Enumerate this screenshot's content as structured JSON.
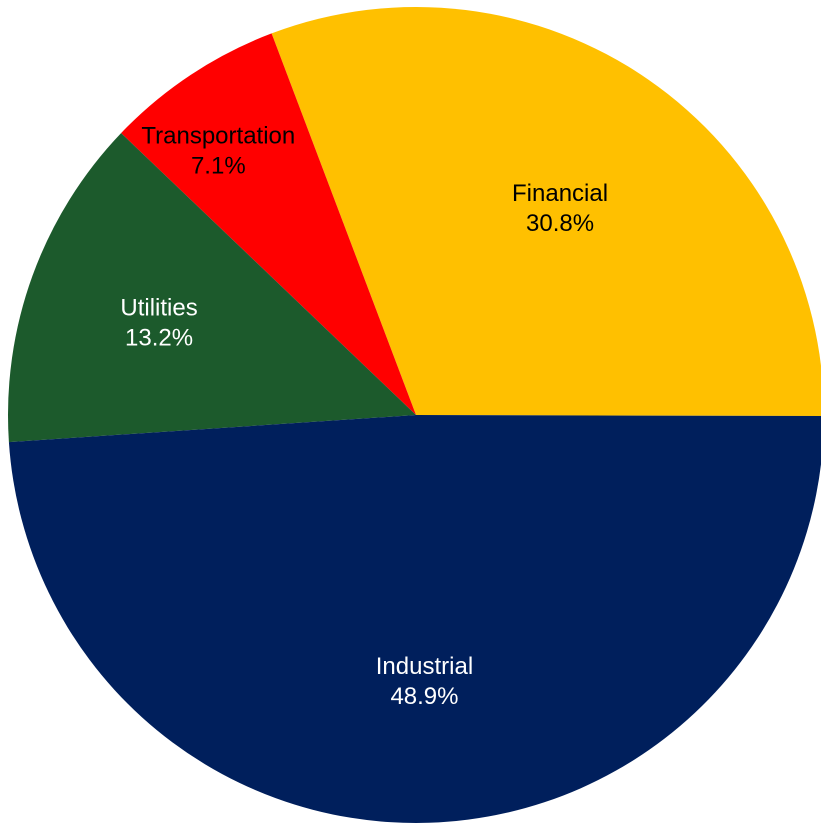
{
  "chart_data": {
    "type": "pie",
    "title": "",
    "slices": [
      {
        "label": "Financial",
        "value": 30.8,
        "display": "30.8%",
        "color": "#FFC000",
        "text_color": "#000000"
      },
      {
        "label": "Transportation",
        "value": 7.1,
        "display": "7.1%",
        "color": "#FF0000",
        "text_color": "#000000"
      },
      {
        "label": "Utilities",
        "value": 13.2,
        "display": "13.2%",
        "color": "#1C5A2C",
        "text_color": "#ffffff"
      },
      {
        "label": "Industrial",
        "value": 48.9,
        "display": "48.9%",
        "color": "#001F5C",
        "text_color": "#ffffff"
      }
    ]
  }
}
